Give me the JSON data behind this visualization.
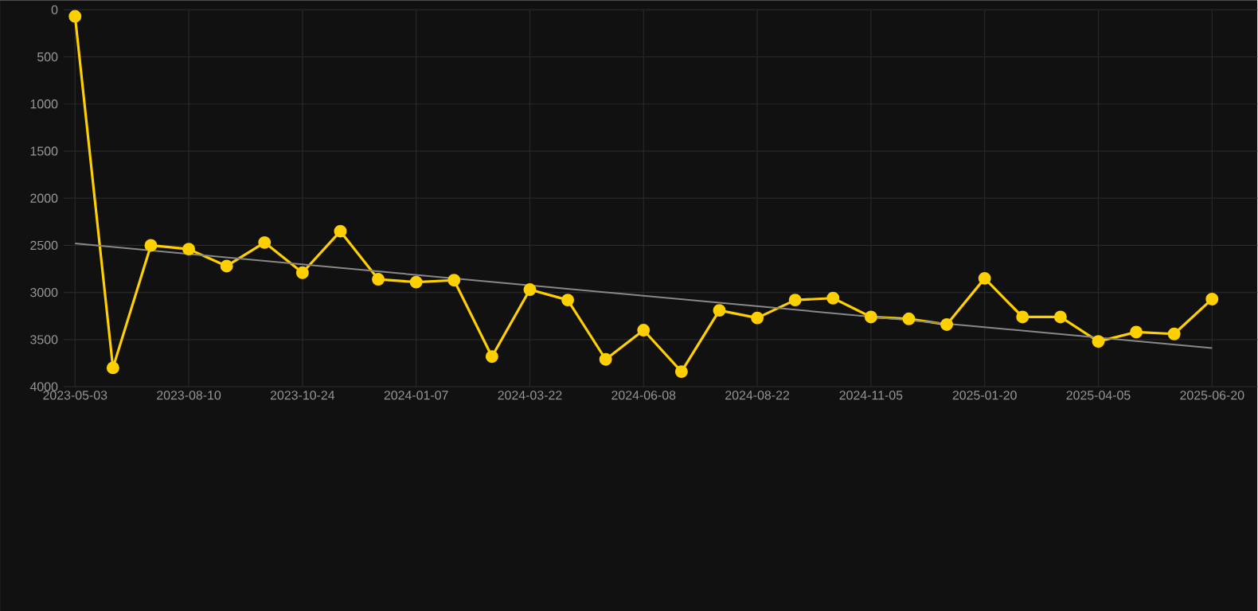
{
  "chart_data": {
    "type": "line",
    "categories": [
      "2023-05-03",
      null,
      null,
      "2023-08-10",
      null,
      null,
      "2023-10-24",
      null,
      null,
      "2024-01-07",
      null,
      null,
      "2024-03-22",
      null,
      null,
      "2024-06-08",
      null,
      null,
      "2024-08-22",
      null,
      null,
      "2024-11-05",
      null,
      null,
      "2025-01-20",
      null,
      null,
      "2025-04-05",
      null,
      null,
      "2025-06-20"
    ],
    "series": [
      {
        "color": "#ffd000",
        "marker": "circle",
        "values": [
          70,
          3800,
          2500,
          2540,
          2720,
          2470,
          2790,
          2350,
          2860,
          2890,
          2870,
          3680,
          2970,
          3080,
          3710,
          3400,
          3840,
          3190,
          3270,
          3080,
          3060,
          3260,
          3280,
          3340,
          2850,
          3260,
          3260,
          3520,
          3420,
          3440,
          3070
        ]
      },
      {
        "color": "#888888",
        "marker": "none",
        "values": [
          2480,
          null,
          null,
          null,
          null,
          null,
          null,
          null,
          null,
          null,
          null,
          null,
          null,
          null,
          null,
          null,
          null,
          null,
          null,
          null,
          null,
          null,
          null,
          null,
          null,
          null,
          null,
          null,
          null,
          null,
          3590
        ]
      }
    ],
    "ylim": [
      4000,
      0
    ],
    "yticks": [
      0,
      500,
      1000,
      1500,
      2000,
      2500,
      3000,
      3500,
      4000
    ],
    "grid": true
  }
}
